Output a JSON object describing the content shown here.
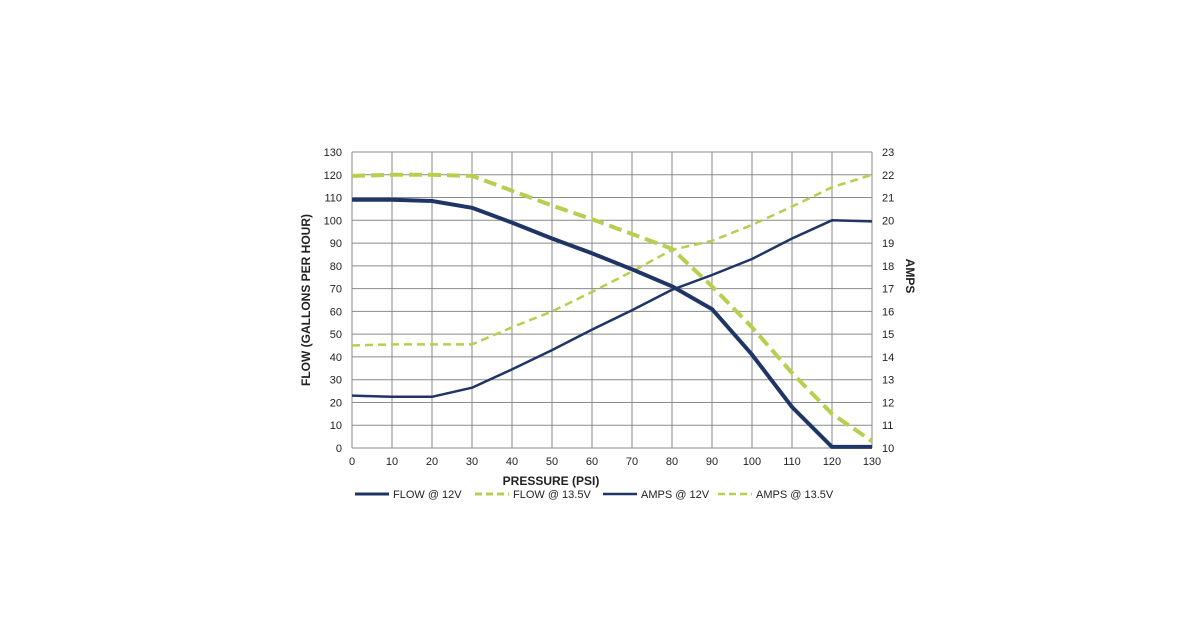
{
  "chart_data": {
    "type": "line",
    "title": "",
    "xlabel": "PRESSURE (PSI)",
    "ylabel": "FLOW (GALLONS PER HOUR)",
    "y2label": "AMPS",
    "xlim": [
      0,
      130
    ],
    "ylim": [
      0,
      130
    ],
    "y2lim": [
      10,
      23
    ],
    "x_ticks": [
      0,
      10,
      20,
      30,
      40,
      50,
      60,
      70,
      80,
      90,
      100,
      110,
      120,
      130
    ],
    "y_ticks": [
      0,
      10,
      20,
      30,
      40,
      50,
      60,
      70,
      80,
      90,
      100,
      110,
      120,
      130
    ],
    "y2_ticks": [
      10,
      11,
      12,
      13,
      14,
      15,
      16,
      17,
      18,
      19,
      20,
      21,
      22,
      23
    ],
    "grid": true,
    "legend_position": "bottom",
    "series": [
      {
        "name": "FLOW @ 12V",
        "axis": "left",
        "color": "#1f3566",
        "style": "solid-bold",
        "x": [
          0,
          10,
          20,
          30,
          40,
          50,
          60,
          70,
          80,
          90,
          100,
          110,
          120,
          130
        ],
        "y": [
          109,
          109,
          108.5,
          105.5,
          99,
          92,
          85.5,
          78.5,
          71,
          61,
          41,
          18,
          0.5,
          0.5
        ]
      },
      {
        "name": "FLOW @ 13.5V",
        "axis": "left",
        "color": "#b5cf4f",
        "style": "dashed-bold",
        "x": [
          0,
          10,
          20,
          30,
          40,
          50,
          60,
          70,
          80,
          90,
          100,
          110,
          120,
          130
        ],
        "y": [
          119.5,
          120,
          120,
          119.5,
          113,
          106.5,
          100.5,
          94,
          87.5,
          71,
          53,
          33,
          15,
          3
        ]
      },
      {
        "name": "AMPS @ 12V",
        "axis": "right",
        "color": "#1f3566",
        "style": "solid",
        "x": [
          0,
          10,
          20,
          30,
          40,
          50,
          60,
          70,
          80,
          90,
          100,
          110,
          120,
          130
        ],
        "y": [
          12.3,
          12.25,
          12.25,
          12.65,
          13.45,
          14.3,
          15.2,
          16.05,
          16.95,
          17.6,
          18.3,
          19.2,
          20.0,
          19.95
        ]
      },
      {
        "name": "AMPS @ 13.5V",
        "axis": "right",
        "color": "#b5cf4f",
        "style": "dashed",
        "x": [
          0,
          10,
          20,
          30,
          40,
          50,
          60,
          70,
          80,
          90,
          100,
          110,
          120,
          130
        ],
        "y": [
          14.5,
          14.55,
          14.55,
          14.55,
          15.3,
          16.0,
          16.85,
          17.75,
          18.7,
          19.1,
          19.8,
          20.6,
          21.45,
          22.0
        ]
      }
    ]
  }
}
